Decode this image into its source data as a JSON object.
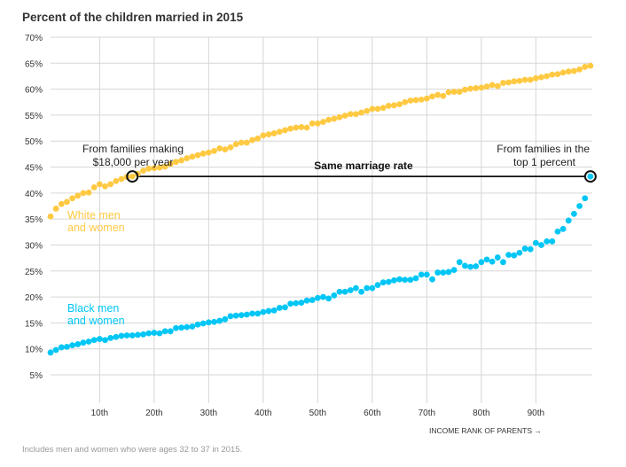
{
  "chart_data": {
    "type": "scatter",
    "title": "Percent of the children married in 2015",
    "xlabel": "INCOME RANK OF PARENTS →",
    "note": "Includes men and women who were ages 32 to 37 in 2015.",
    "xlim": [
      1,
      100
    ],
    "ylim": [
      0,
      70
    ],
    "y_ticks": [
      "70%",
      "65%",
      "60%",
      "55%",
      "50%",
      "45%",
      "40%",
      "35%",
      "30%",
      "25%",
      "20%",
      "15%",
      "10%",
      "5%"
    ],
    "y_tick_values": [
      70,
      65,
      60,
      55,
      50,
      45,
      40,
      35,
      30,
      25,
      20,
      15,
      10,
      5
    ],
    "x_ticks": [
      "10th",
      "20th",
      "30th",
      "40th",
      "50th",
      "60th",
      "70th",
      "80th",
      "90th"
    ],
    "x_tick_values": [
      10,
      20,
      30,
      40,
      50,
      60,
      70,
      80,
      90
    ],
    "grid": true,
    "series": [
      {
        "name": "White men and women",
        "label_lines": [
          "White men",
          "and women"
        ],
        "color": "#ffc942",
        "values": [
          35.5,
          37.0,
          37.9,
          38.3,
          39.0,
          39.5,
          40.0,
          40.1,
          41.1,
          41.7,
          41.3,
          41.7,
          42.3,
          42.7,
          43.1,
          43.2,
          43.7,
          44.3,
          44.7,
          44.8,
          44.9,
          45.1,
          45.6,
          46.0,
          46.3,
          46.7,
          47.0,
          47.3,
          47.6,
          47.8,
          48.1,
          48.6,
          48.4,
          48.8,
          49.4,
          49.7,
          49.7,
          50.2,
          50.5,
          51.1,
          51.3,
          51.5,
          51.8,
          52.1,
          52.4,
          52.6,
          52.7,
          52.6,
          53.4,
          53.4,
          53.7,
          54.1,
          54.3,
          54.6,
          54.9,
          55.2,
          55.2,
          55.5,
          55.8,
          56.2,
          56.2,
          56.4,
          56.8,
          56.9,
          57.1,
          57.5,
          57.8,
          57.9,
          58.0,
          58.2,
          58.6,
          58.9,
          58.7,
          59.4,
          59.5,
          59.5,
          59.9,
          60.1,
          60.2,
          60.3,
          60.5,
          60.8,
          60.6,
          61.2,
          61.3,
          61.5,
          61.6,
          61.8,
          61.8,
          62.1,
          62.3,
          62.5,
          62.8,
          62.9,
          63.2,
          63.4,
          63.5,
          63.8,
          64.3,
          64.5
        ]
      },
      {
        "name": "Black men and women",
        "label_lines": [
          "Black men",
          "and women"
        ],
        "color": "#00c6f5",
        "values": [
          9.3,
          9.8,
          10.3,
          10.4,
          10.7,
          10.9,
          11.2,
          11.4,
          11.7,
          11.9,
          11.7,
          12.1,
          12.3,
          12.5,
          12.6,
          12.6,
          12.7,
          12.8,
          13.0,
          13.1,
          13.0,
          13.4,
          13.4,
          14.0,
          14.1,
          14.2,
          14.3,
          14.7,
          14.9,
          15.1,
          15.2,
          15.4,
          15.7,
          16.3,
          16.4,
          16.5,
          16.6,
          16.8,
          16.8,
          17.1,
          17.3,
          17.4,
          17.9,
          18.0,
          18.7,
          18.8,
          18.9,
          19.3,
          19.4,
          19.8,
          20.0,
          19.7,
          20.3,
          21.0,
          21.0,
          21.3,
          21.7,
          21.0,
          21.7,
          21.7,
          22.3,
          22.8,
          22.9,
          23.2,
          23.4,
          23.3,
          23.3,
          23.6,
          24.3,
          24.3,
          23.4,
          24.7,
          24.7,
          24.8,
          25.2,
          26.7,
          26.0,
          25.8,
          25.9,
          26.7,
          27.2,
          26.8,
          27.6,
          26.7,
          28.1,
          28.0,
          28.5,
          29.3,
          29.2,
          30.4,
          30.0,
          30.7,
          30.7,
          32.6,
          33.1,
          34.7,
          36.0,
          37.5,
          39.0,
          43.2
        ]
      }
    ],
    "annotations": {
      "left_lines": [
        "From families making",
        "$18,000 per year"
      ],
      "left_rank": 16,
      "right_lines": [
        "From families in the",
        "top 1 percent"
      ],
      "right_rank": 100,
      "same_rate_label": "Same marriage rate",
      "same_rate_value": 43.2
    }
  }
}
